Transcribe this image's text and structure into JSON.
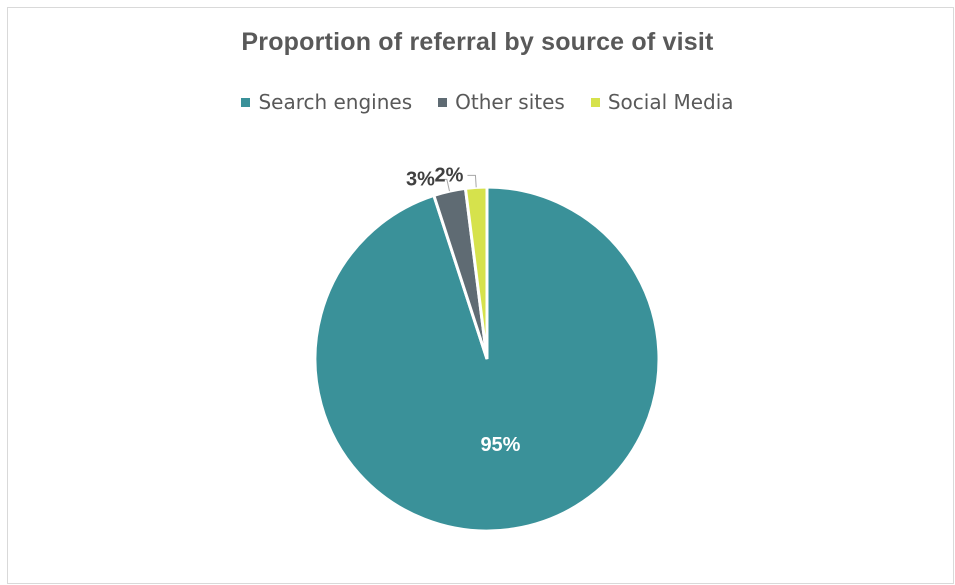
{
  "chart_data": {
    "type": "pie",
    "title": "Proportion of referral by source of visit",
    "categories": [
      "Search engines",
      "Other sites",
      "Social Media"
    ],
    "values": [
      95,
      3,
      2
    ],
    "data_labels": [
      "95%",
      "3%",
      "2%"
    ],
    "colors": [
      "#3a9199",
      "#5f6b73",
      "#d6e24c"
    ],
    "legend_position": "top"
  }
}
